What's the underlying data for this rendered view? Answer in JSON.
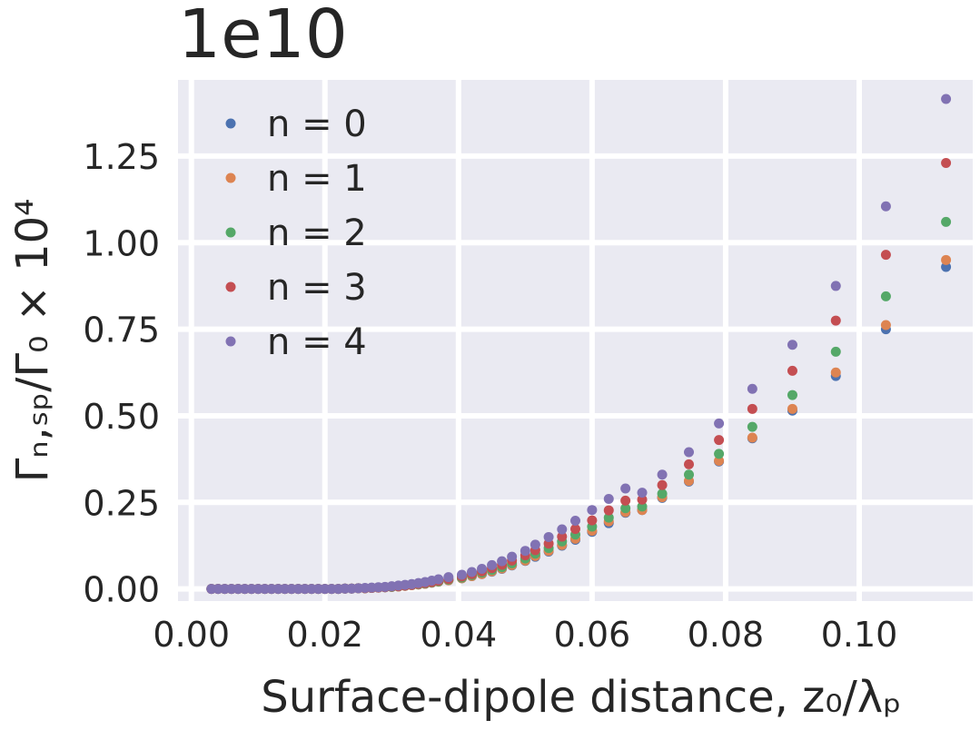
{
  "chart_data": {
    "type": "scatter",
    "offset_label": "1e10",
    "xlabel": "Surface-dipole distance, z₀/λₚ",
    "ylabel": "Γₙ,ₛₚ/Γ₀ × 10⁴",
    "xlim": [
      -0.002,
      0.117
    ],
    "ylim": [
      -0.035,
      1.47
    ],
    "xticks": [
      0.0,
      0.02,
      0.04,
      0.06,
      0.08,
      0.1
    ],
    "xtick_labels": [
      "0.00",
      "0.02",
      "0.04",
      "0.06",
      "0.08",
      "0.10"
    ],
    "yticks": [
      0.0,
      0.25,
      0.5,
      0.75,
      1.0,
      1.25
    ],
    "ytick_labels": [
      "0.00",
      "0.25",
      "0.50",
      "0.75",
      "1.00",
      "1.25"
    ],
    "grid": true,
    "legend_position": "upper-left",
    "x": [
      0.003,
      0.004,
      0.005,
      0.006,
      0.007,
      0.008,
      0.009,
      0.01,
      0.011,
      0.012,
      0.013,
      0.014,
      0.015,
      0.016,
      0.017,
      0.018,
      0.019,
      0.02,
      0.021,
      0.022,
      0.023,
      0.024,
      0.025,
      0.026,
      0.027,
      0.028,
      0.029,
      0.03,
      0.031,
      0.032,
      0.033,
      0.034,
      0.035,
      0.036,
      0.037,
      0.0385,
      0.0405,
      0.042,
      0.0435,
      0.045,
      0.0465,
      0.048,
      0.05,
      0.0515,
      0.0535,
      0.0555,
      0.0575,
      0.06,
      0.0625,
      0.065,
      0.0675,
      0.0705,
      0.0745,
      0.079,
      0.084,
      0.09,
      0.0965,
      0.104,
      0.113
    ],
    "series": [
      {
        "name": "n = 0",
        "color": "#4c72b0",
        "values": [
          0,
          0,
          0,
          0,
          0,
          0,
          0,
          0,
          0,
          0,
          0,
          0,
          0,
          0,
          0,
          0,
          0,
          0,
          0,
          0,
          0.001,
          0.001,
          0.002,
          0.002,
          0.003,
          0.004,
          0.005,
          0.006,
          0.007,
          0.009,
          0.011,
          0.013,
          0.015,
          0.018,
          0.021,
          0.025,
          0.031,
          0.037,
          0.043,
          0.05,
          0.058,
          0.068,
          0.081,
          0.093,
          0.108,
          0.125,
          0.142,
          0.165,
          0.19,
          0.22,
          0.228,
          0.263,
          0.31,
          0.368,
          0.435,
          0.515,
          0.615,
          0.75,
          0.93
        ]
      },
      {
        "name": "n = 1",
        "color": "#dd8452",
        "values": [
          0,
          0,
          0,
          0,
          0,
          0,
          0,
          0,
          0,
          0,
          0,
          0,
          0,
          0,
          0,
          0,
          0,
          0,
          0,
          0,
          0.001,
          0.001,
          0.002,
          0.002,
          0.003,
          0.004,
          0.005,
          0.006,
          0.007,
          0.009,
          0.011,
          0.013,
          0.015,
          0.018,
          0.021,
          0.025,
          0.031,
          0.037,
          0.043,
          0.051,
          0.059,
          0.069,
          0.082,
          0.095,
          0.11,
          0.127,
          0.145,
          0.168,
          0.195,
          0.222,
          0.228,
          0.265,
          0.312,
          0.37,
          0.437,
          0.52,
          0.625,
          0.762,
          0.95
        ]
      },
      {
        "name": "n = 2",
        "color": "#55a868",
        "values": [
          0,
          0,
          0,
          0,
          0,
          0,
          0,
          0,
          0,
          0,
          0,
          0,
          0,
          0,
          0,
          0,
          0,
          0,
          0,
          0,
          0.001,
          0.001,
          0.002,
          0.002,
          0.003,
          0.004,
          0.005,
          0.006,
          0.008,
          0.01,
          0.012,
          0.014,
          0.016,
          0.019,
          0.022,
          0.027,
          0.033,
          0.04,
          0.047,
          0.055,
          0.063,
          0.074,
          0.088,
          0.102,
          0.118,
          0.137,
          0.157,
          0.18,
          0.206,
          0.233,
          0.238,
          0.275,
          0.33,
          0.39,
          0.468,
          0.56,
          0.685,
          0.845,
          1.06
        ]
      },
      {
        "name": "n = 3",
        "color": "#c44e52",
        "values": [
          0,
          0,
          0,
          0,
          0,
          0,
          0,
          0,
          0,
          0,
          0,
          0,
          0,
          0,
          0,
          0,
          0,
          0,
          0,
          0,
          0.001,
          0.001,
          0.002,
          0.002,
          0.003,
          0.004,
          0.005,
          0.007,
          0.008,
          0.01,
          0.012,
          0.015,
          0.017,
          0.02,
          0.024,
          0.029,
          0.036,
          0.043,
          0.051,
          0.06,
          0.07,
          0.082,
          0.097,
          0.112,
          0.131,
          0.151,
          0.173,
          0.198,
          0.227,
          0.255,
          0.258,
          0.3,
          0.36,
          0.43,
          0.52,
          0.63,
          0.775,
          0.965,
          1.23
        ]
      },
      {
        "name": "n = 4",
        "color": "#8172b3",
        "values": [
          0,
          0,
          0,
          0,
          0,
          0,
          0,
          0,
          0,
          0,
          0,
          0,
          0,
          0,
          0,
          0,
          0,
          0,
          0,
          0,
          0.001,
          0.001,
          0.002,
          0.003,
          0.004,
          0.005,
          0.006,
          0.008,
          0.01,
          0.012,
          0.014,
          0.017,
          0.02,
          0.024,
          0.028,
          0.034,
          0.041,
          0.049,
          0.058,
          0.069,
          0.08,
          0.093,
          0.11,
          0.128,
          0.15,
          0.172,
          0.197,
          0.228,
          0.26,
          0.29,
          0.278,
          0.33,
          0.395,
          0.478,
          0.578,
          0.705,
          0.875,
          1.105,
          1.415
        ]
      }
    ]
  }
}
